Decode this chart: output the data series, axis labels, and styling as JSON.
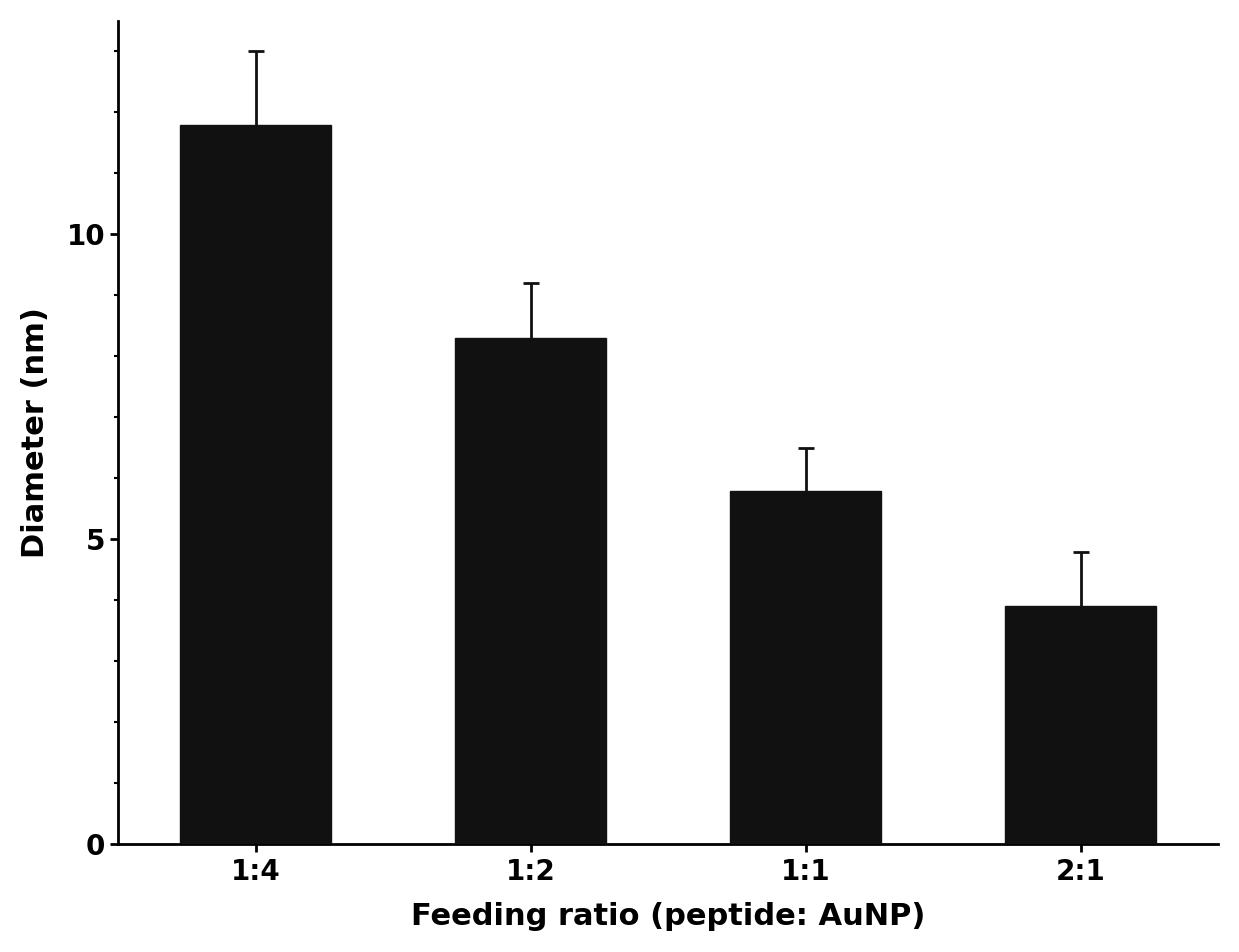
{
  "categories": [
    "1:4",
    "1:2",
    "1:1",
    "2:1"
  ],
  "values": [
    11.8,
    8.3,
    5.8,
    3.9
  ],
  "errors": [
    1.2,
    0.9,
    0.7,
    0.9
  ],
  "bar_color": "#111111",
  "bar_edgecolor": "#111111",
  "bar_width": 0.55,
  "xlabel": "Feeding ratio (peptide: AuNP)",
  "ylabel": "Diameter (nm)",
  "ylim": [
    0,
    13.5
  ],
  "yticks": [
    0,
    5,
    10
  ],
  "xlabel_fontsize": 22,
  "ylabel_fontsize": 22,
  "tick_fontsize": 20,
  "background_color": "#ffffff",
  "capsize": 6,
  "error_linewidth": 2.0,
  "error_capthick": 2.0
}
